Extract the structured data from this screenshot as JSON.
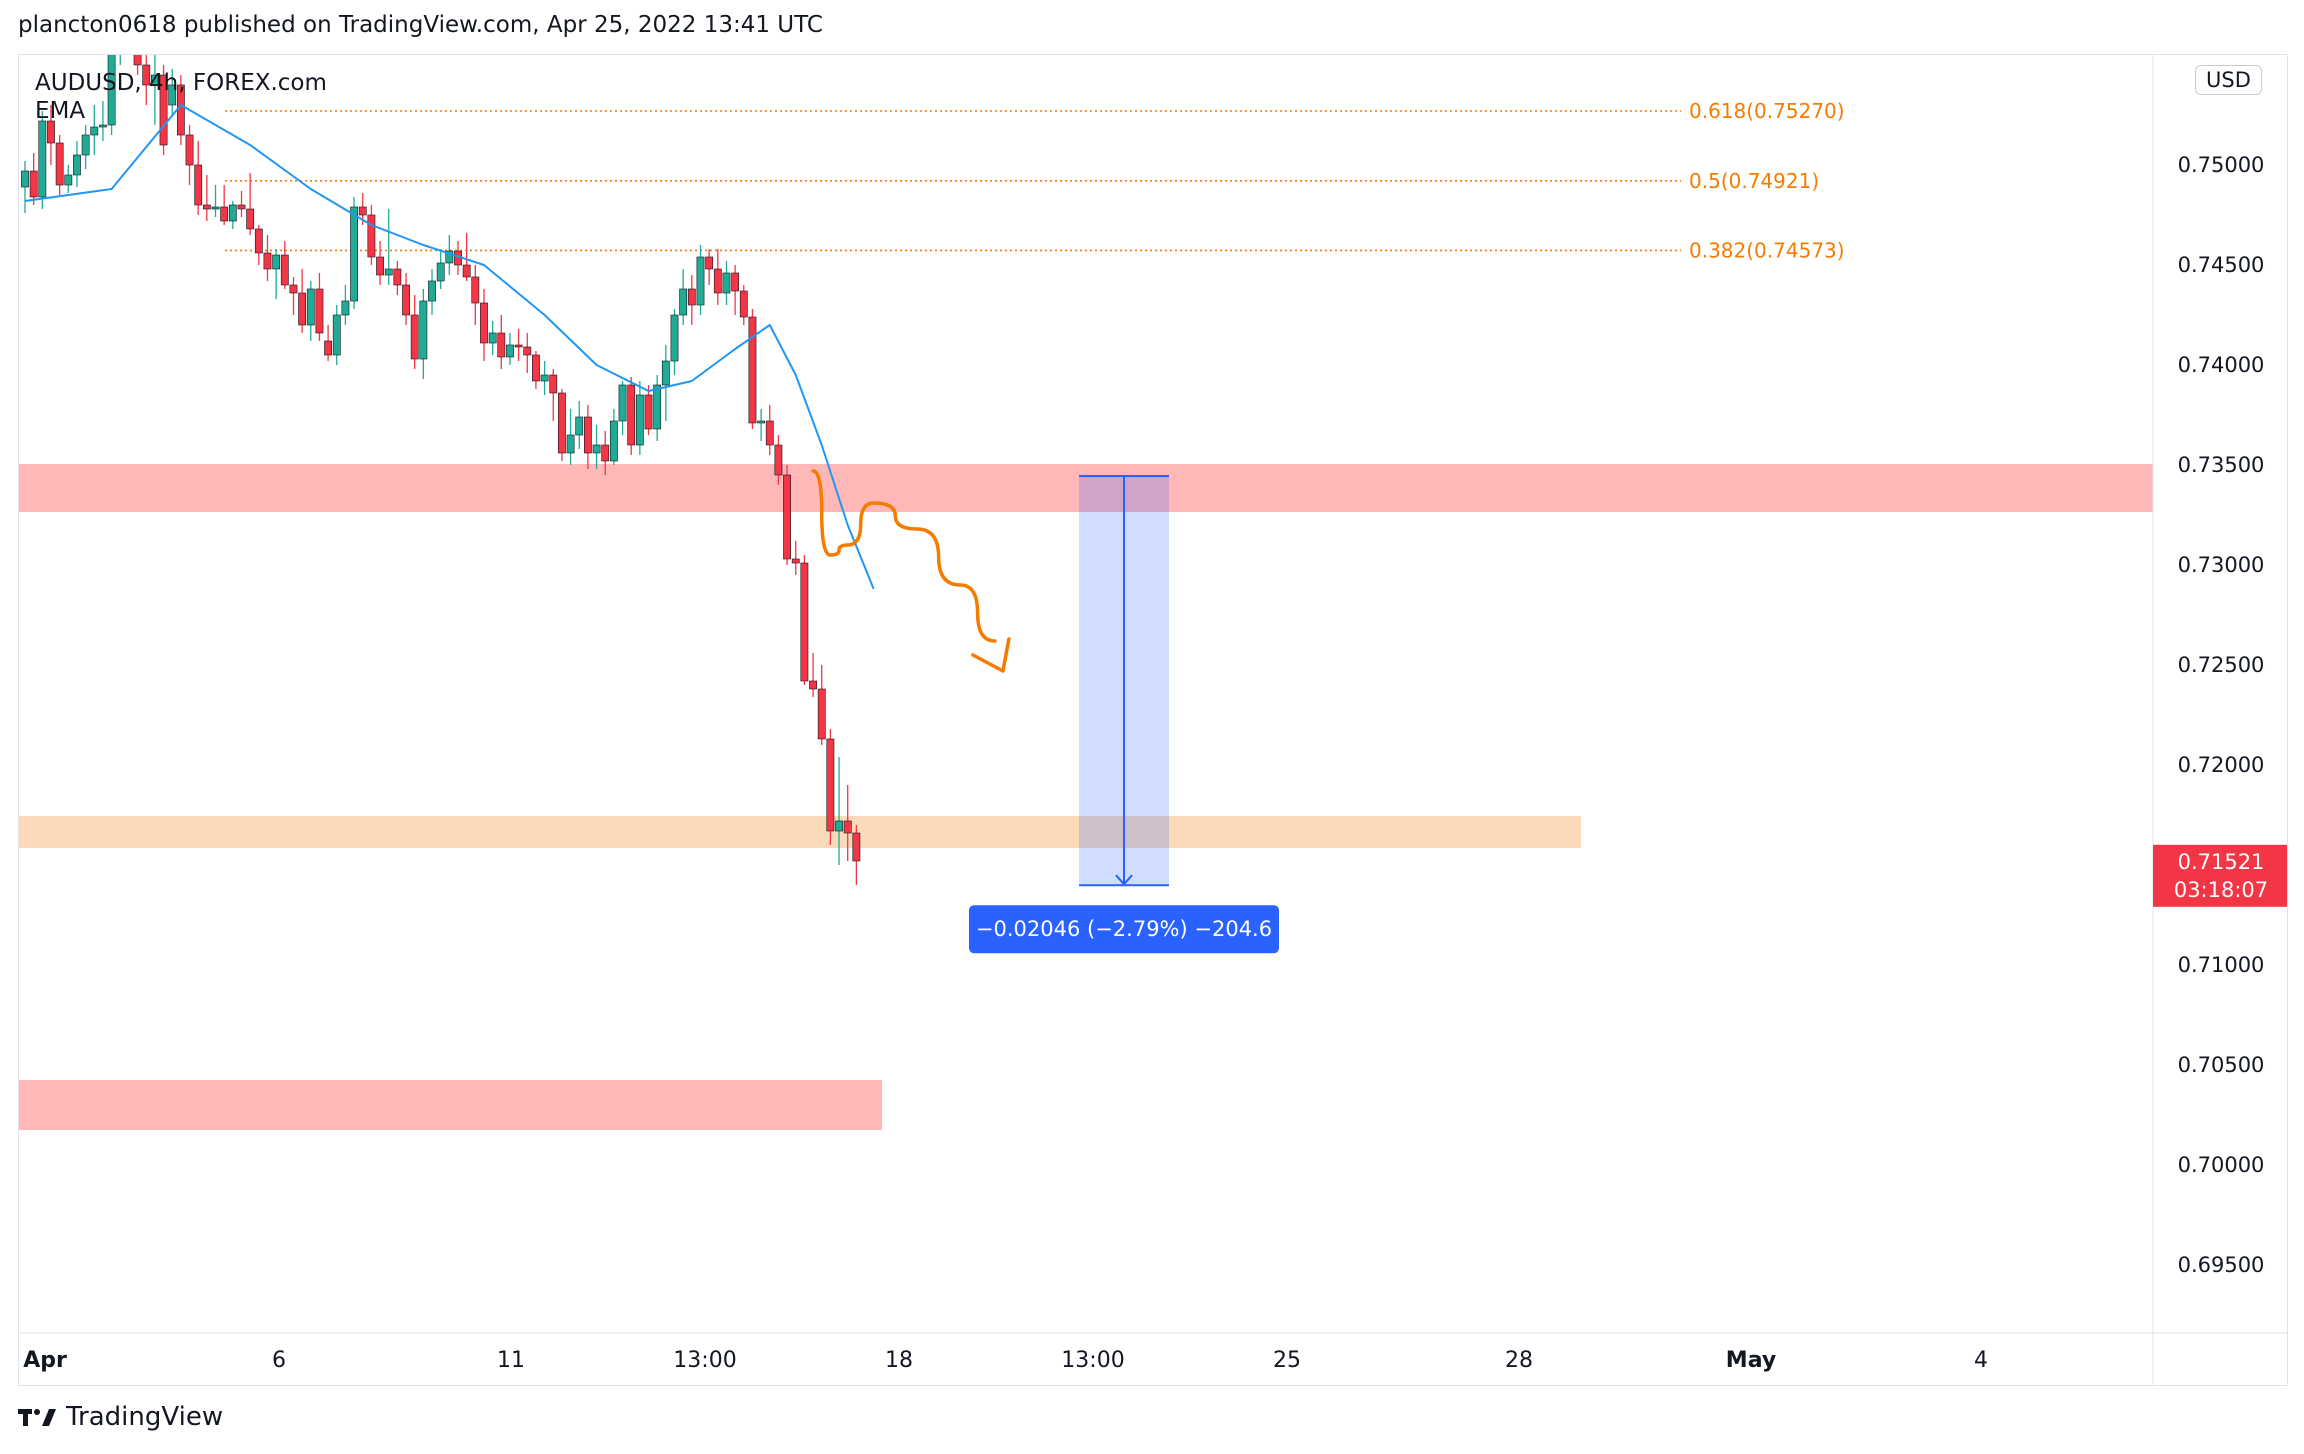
{
  "header": {
    "published_line": "plancton0618 published on TradingView.com, Apr 25, 2022 13:41 UTC"
  },
  "symbol": {
    "line1": "AUDUSD, 4h, FOREX.com",
    "indicator": "EMA"
  },
  "currency": "USD",
  "price_scale": {
    "labels": [
      "0.75000",
      "0.74500",
      "0.74000",
      "0.73500",
      "0.73000",
      "0.72500",
      "0.72000",
      "0.71000",
      "0.70500",
      "0.70000",
      "0.69500"
    ],
    "current_price": "0.71521",
    "countdown": "03:18:07",
    "current_color": "#f23645"
  },
  "time_axis": {
    "labels": [
      "Apr",
      "6",
      "11",
      "13:00",
      "18",
      "13:00",
      "25",
      "28",
      "May",
      "4"
    ]
  },
  "fib_levels": [
    {
      "label": "0.618(0.75270)",
      "price": 0.7527
    },
    {
      "label": "0.5(0.74921)",
      "price": 0.74921
    },
    {
      "label": "0.382(0.74573)",
      "price": 0.74573
    }
  ],
  "measure": {
    "label": "−0.02046 (−2.79%) −204.6",
    "from": 0.73445,
    "to": 0.71399
  },
  "zones": [
    {
      "name": "upper-resistance-zone",
      "top": 0.73505,
      "bottom": 0.73265,
      "color": "#ffb3b3"
    },
    {
      "name": "support-zone",
      "top": 0.71745,
      "bottom": 0.71585,
      "color": "#fad4ad"
    },
    {
      "name": "lower-zone",
      "top": 0.70425,
      "bottom": 0.70175,
      "color": "#ffb3b3"
    }
  ],
  "colors": {
    "up": "#22ab94",
    "down": "#f23645",
    "ema": "#2196f3",
    "fib": "#f57c00",
    "measure": "#2962ff",
    "projection": "#f57c00"
  },
  "branding": {
    "name": "TradingView"
  },
  "chart_data": {
    "type": "candlestick",
    "symbol": "AUDUSD",
    "interval": "4h",
    "ylim": [
      0.6915,
      0.7555
    ],
    "candles": [
      [
        0.7489,
        0.7502,
        0.7476,
        0.7497
      ],
      [
        0.7497,
        0.7506,
        0.748,
        0.7484
      ],
      [
        0.7484,
        0.7527,
        0.7478,
        0.7522
      ],
      [
        0.7522,
        0.753,
        0.75,
        0.7511
      ],
      [
        0.7511,
        0.7515,
        0.7485,
        0.749
      ],
      [
        0.749,
        0.75,
        0.7486,
        0.7495
      ],
      [
        0.7495,
        0.7512,
        0.7489,
        0.7505
      ],
      [
        0.7505,
        0.752,
        0.7498,
        0.7515
      ],
      [
        0.7515,
        0.753,
        0.7505,
        0.7519
      ],
      [
        0.7519,
        0.7532,
        0.7512,
        0.752
      ],
      [
        0.752,
        0.756,
        0.7515,
        0.756
      ],
      [
        0.756,
        0.7575,
        0.755,
        0.757
      ],
      [
        0.757,
        0.758,
        0.7558,
        0.7562
      ],
      [
        0.7562,
        0.7572,
        0.7545,
        0.755
      ],
      [
        0.755,
        0.756,
        0.753,
        0.754
      ],
      [
        0.754,
        0.7555,
        0.752,
        0.7545
      ],
      [
        0.7545,
        0.755,
        0.7505,
        0.751
      ],
      [
        0.753,
        0.7548,
        0.7525,
        0.754
      ],
      [
        0.754,
        0.7545,
        0.751,
        0.7515
      ],
      [
        0.7515,
        0.752,
        0.749,
        0.75
      ],
      [
        0.75,
        0.7512,
        0.7475,
        0.748
      ],
      [
        0.748,
        0.7495,
        0.7472,
        0.7478
      ],
      [
        0.7478,
        0.749,
        0.7474,
        0.7479
      ],
      [
        0.7479,
        0.749,
        0.747,
        0.7472
      ],
      [
        0.7472,
        0.7482,
        0.7468,
        0.748
      ],
      [
        0.748,
        0.7487,
        0.7474,
        0.7478
      ],
      [
        0.7478,
        0.7496,
        0.7465,
        0.7468
      ],
      [
        0.7468,
        0.747,
        0.745,
        0.7456
      ],
      [
        0.7456,
        0.7465,
        0.7442,
        0.7448
      ],
      [
        0.7448,
        0.7458,
        0.7433,
        0.7455
      ],
      [
        0.7455,
        0.7462,
        0.7438,
        0.744
      ],
      [
        0.744,
        0.7444,
        0.7425,
        0.7436
      ],
      [
        0.7436,
        0.7448,
        0.7416,
        0.742
      ],
      [
        0.742,
        0.7442,
        0.7412,
        0.7438
      ],
      [
        0.7438,
        0.7446,
        0.7412,
        0.7416
      ],
      [
        0.7412,
        0.742,
        0.7402,
        0.7405
      ],
      [
        0.7405,
        0.743,
        0.74,
        0.7425
      ],
      [
        0.7425,
        0.744,
        0.742,
        0.7432
      ],
      [
        0.7432,
        0.7484,
        0.7428,
        0.7479
      ],
      [
        0.7479,
        0.7486,
        0.747,
        0.7475
      ],
      [
        0.7475,
        0.748,
        0.745,
        0.7454
      ],
      [
        0.7454,
        0.7462,
        0.744,
        0.7445
      ],
      [
        0.7445,
        0.7478,
        0.744,
        0.7448
      ],
      [
        0.7448,
        0.7452,
        0.7435,
        0.744
      ],
      [
        0.744,
        0.7446,
        0.742,
        0.7425
      ],
      [
        0.7425,
        0.7435,
        0.7398,
        0.7403
      ],
      [
        0.7403,
        0.7438,
        0.7393,
        0.7432
      ],
      [
        0.7432,
        0.7448,
        0.7425,
        0.7442
      ],
      [
        0.7442,
        0.7458,
        0.7438,
        0.7451
      ],
      [
        0.7451,
        0.7465,
        0.7445,
        0.7457
      ],
      [
        0.7457,
        0.7462,
        0.7445,
        0.745
      ],
      [
        0.745,
        0.7466,
        0.7442,
        0.7444
      ],
      [
        0.7444,
        0.745,
        0.742,
        0.7431
      ],
      [
        0.7431,
        0.7438,
        0.7402,
        0.7411
      ],
      [
        0.7411,
        0.7422,
        0.7405,
        0.7416
      ],
      [
        0.7416,
        0.7425,
        0.7398,
        0.7404
      ],
      [
        0.7404,
        0.7416,
        0.74,
        0.741
      ],
      [
        0.741,
        0.7418,
        0.7402,
        0.7409
      ],
      [
        0.7409,
        0.7416,
        0.7396,
        0.7405
      ],
      [
        0.7405,
        0.7407,
        0.7388,
        0.7392
      ],
      [
        0.7392,
        0.7402,
        0.7385,
        0.7395
      ],
      [
        0.7395,
        0.7398,
        0.7372,
        0.7386
      ],
      [
        0.7386,
        0.7388,
        0.7352,
        0.7356
      ],
      [
        0.7356,
        0.7378,
        0.735,
        0.7365
      ],
      [
        0.7365,
        0.7382,
        0.7358,
        0.7374
      ],
      [
        0.7374,
        0.738,
        0.7348,
        0.7356
      ],
      [
        0.7356,
        0.737,
        0.7348,
        0.736
      ],
      [
        0.736,
        0.7367,
        0.7345,
        0.7352
      ],
      [
        0.7352,
        0.7378,
        0.735,
        0.7372
      ],
      [
        0.7372,
        0.7392,
        0.7365,
        0.739
      ],
      [
        0.739,
        0.7394,
        0.7355,
        0.736
      ],
      [
        0.736,
        0.7392,
        0.7355,
        0.7385
      ],
      [
        0.7385,
        0.739,
        0.7365,
        0.7368
      ],
      [
        0.7368,
        0.7395,
        0.7362,
        0.739
      ],
      [
        0.739,
        0.741,
        0.7372,
        0.7402
      ],
      [
        0.7402,
        0.7428,
        0.7395,
        0.7425
      ],
      [
        0.7425,
        0.7448,
        0.742,
        0.7438
      ],
      [
        0.7438,
        0.7445,
        0.742,
        0.743
      ],
      [
        0.743,
        0.746,
        0.7425,
        0.7454
      ],
      [
        0.7454,
        0.7458,
        0.744,
        0.7448
      ],
      [
        0.7448,
        0.7458,
        0.743,
        0.7436
      ],
      [
        0.7436,
        0.7452,
        0.743,
        0.7446
      ],
      [
        0.7446,
        0.745,
        0.7425,
        0.7437
      ],
      [
        0.7437,
        0.744,
        0.742,
        0.7424
      ],
      [
        0.7424,
        0.7428,
        0.7368,
        0.7371
      ],
      [
        0.7371,
        0.7378,
        0.7362,
        0.7372
      ],
      [
        0.7372,
        0.738,
        0.7355,
        0.736
      ],
      [
        0.736,
        0.7365,
        0.734,
        0.7345
      ],
      [
        0.7345,
        0.735,
        0.73,
        0.7303
      ],
      [
        0.7303,
        0.7312,
        0.7295,
        0.7301
      ],
      [
        0.7301,
        0.7305,
        0.724,
        0.7242
      ],
      [
        0.7242,
        0.7256,
        0.7234,
        0.7238
      ],
      [
        0.7238,
        0.725,
        0.721,
        0.7213
      ],
      [
        0.7213,
        0.7218,
        0.716,
        0.7167
      ],
      [
        0.7167,
        0.7204,
        0.715,
        0.7172
      ],
      [
        0.7172,
        0.719,
        0.7152,
        0.7166
      ],
      [
        0.7166,
        0.717,
        0.714,
        0.7152
      ]
    ],
    "ema": [
      [
        0,
        0.7482
      ],
      [
        10,
        0.7488
      ],
      [
        18,
        0.753
      ],
      [
        26,
        0.751
      ],
      [
        33,
        0.7488
      ],
      [
        40,
        0.747
      ],
      [
        46,
        0.746
      ],
      [
        53,
        0.745
      ],
      [
        60,
        0.7425
      ],
      [
        66,
        0.74
      ],
      [
        72,
        0.7387
      ],
      [
        77,
        0.7392
      ],
      [
        82,
        0.7408
      ],
      [
        86,
        0.742
      ],
      [
        89,
        0.7395
      ],
      [
        92,
        0.736
      ],
      [
        95,
        0.732
      ],
      [
        98,
        0.7288
      ]
    ],
    "projection_path": [
      [
        91,
        0.7347
      ],
      [
        93,
        0.7305
      ],
      [
        95,
        0.731
      ],
      [
        98,
        0.7331
      ],
      [
        103,
        0.7318
      ],
      [
        108,
        0.729
      ],
      [
        112,
        0.7262
      ]
    ]
  }
}
